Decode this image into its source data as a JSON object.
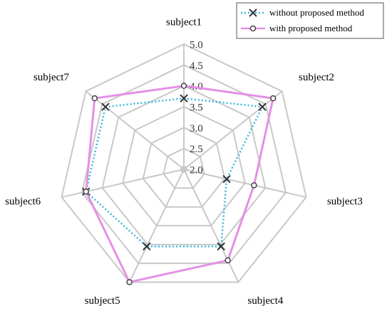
{
  "chart_data": {
    "type": "radar",
    "categories": [
      "subject1",
      "subject2",
      "subject3",
      "subject4",
      "subject5",
      "subject6",
      "subject7"
    ],
    "ylim": [
      2,
      5
    ],
    "yticks": [
      {
        "value": 2,
        "label": "2.0"
      },
      {
        "value": 2.5,
        "label": "2.5"
      },
      {
        "value": 3,
        "label": "3.0"
      },
      {
        "value": 3.5,
        "label": "3.5"
      },
      {
        "value": 4,
        "label": "4.0"
      },
      {
        "value": 4.5,
        "label": "4.5"
      },
      {
        "value": 5,
        "label": "5.0"
      }
    ],
    "grid": true,
    "legend": "upper right",
    "series": [
      {
        "name": "without proposed method",
        "color": "#3ab7d8",
        "marker": "x",
        "values": [
          3.7,
          4.4,
          3.05,
          4.05,
          4.05,
          4.4,
          4.4
        ]
      },
      {
        "name": "with proposed method",
        "color": "#e58fe5",
        "marker": "o",
        "values": [
          4.0,
          4.73,
          3.72,
          4.42,
          5.0,
          4.4,
          4.73
        ]
      }
    ]
  }
}
